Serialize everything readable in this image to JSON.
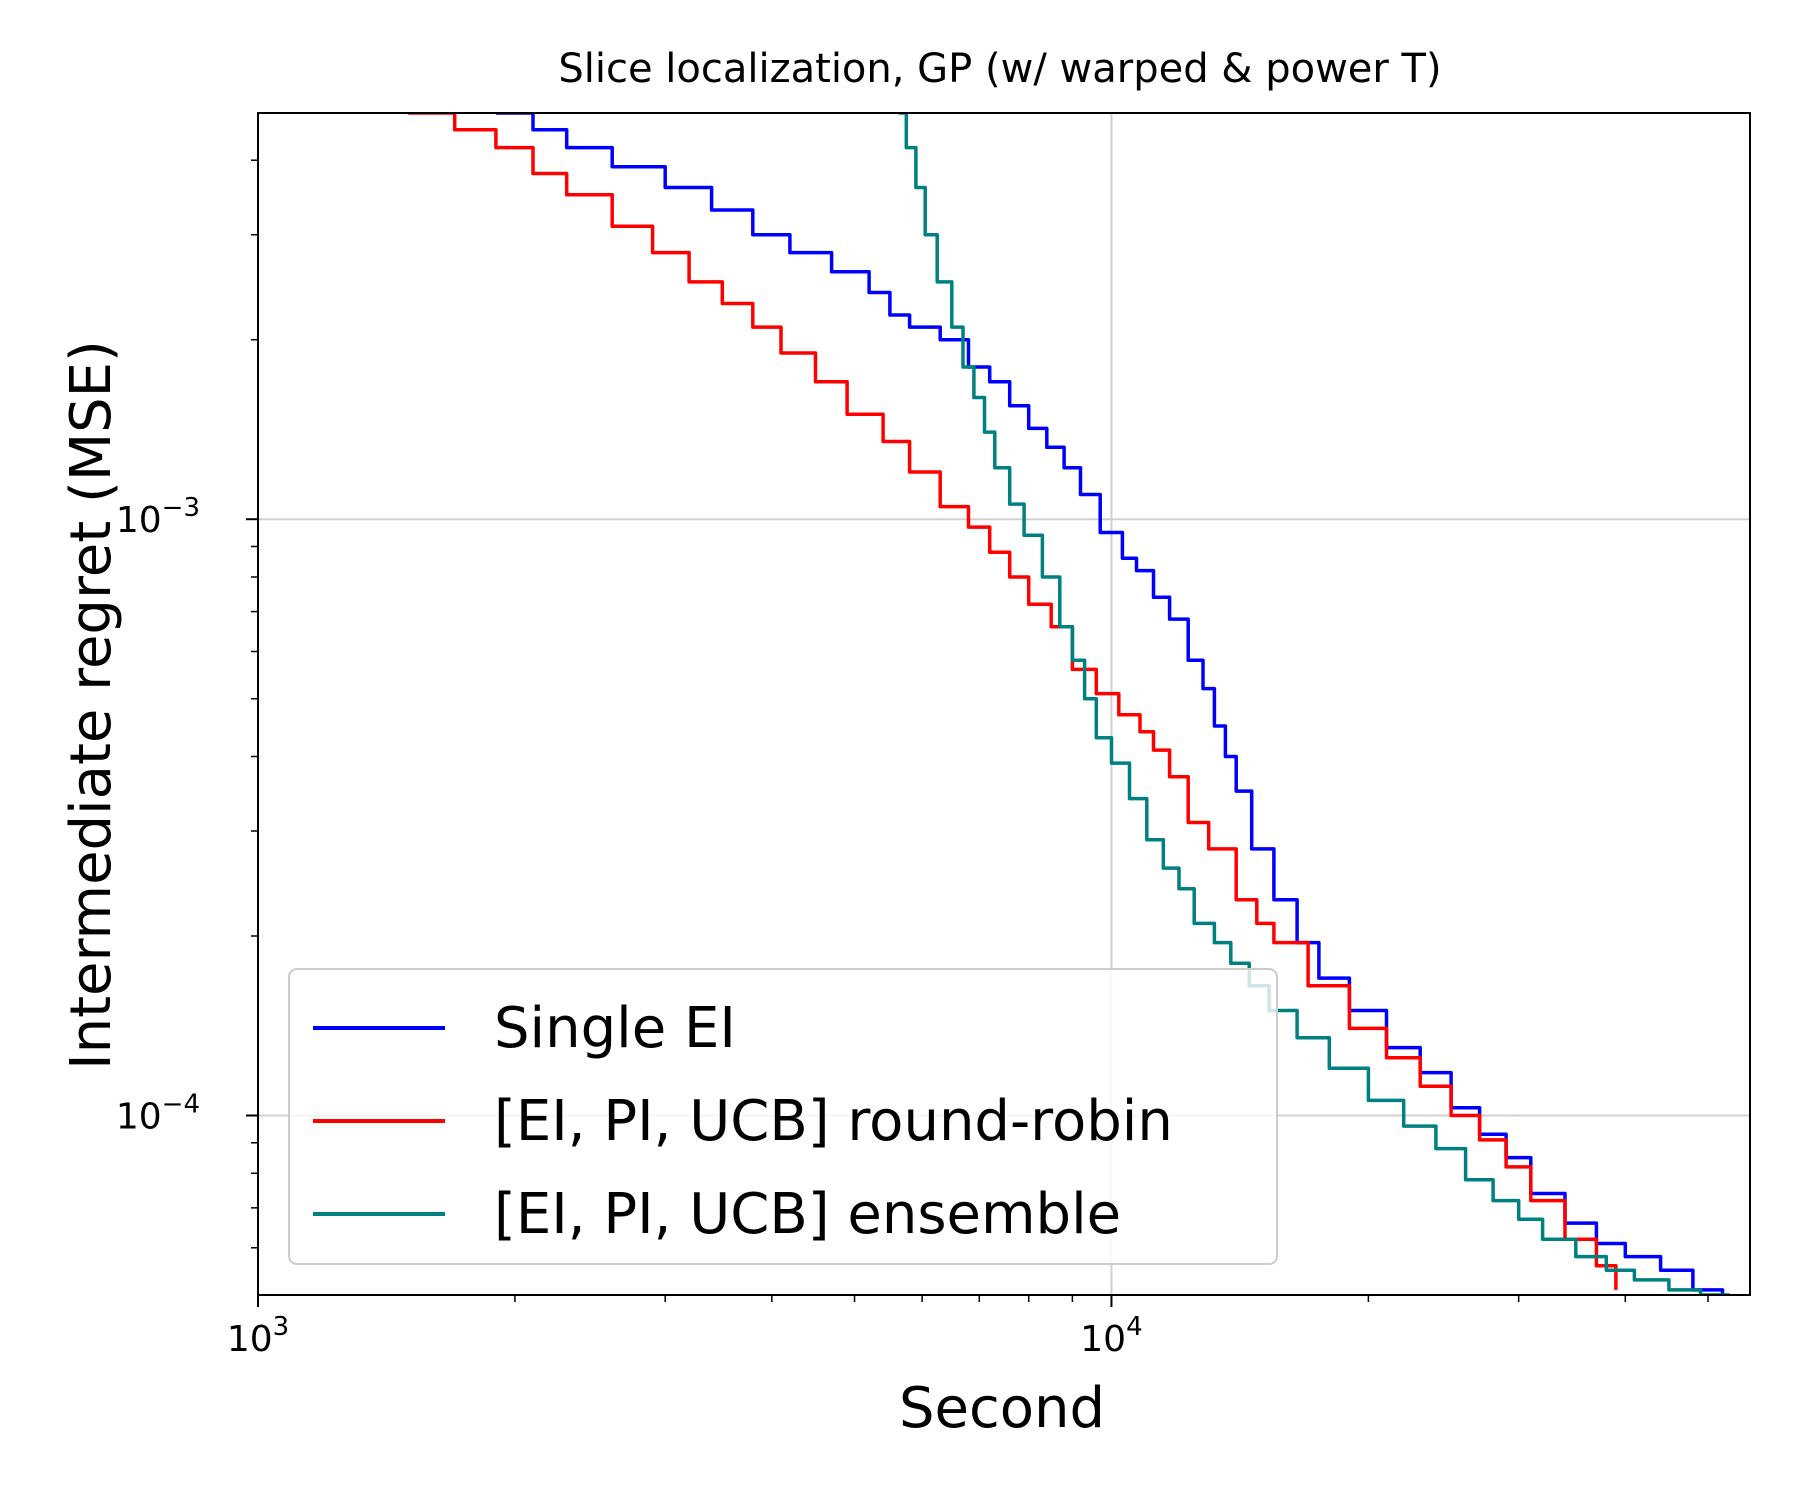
{
  "chart_data": {
    "type": "line",
    "title": "Slice localization, GP (w/ warped & power T)",
    "xlabel": "Second",
    "ylabel": "Intermediate regret (MSE)",
    "xscale": "log",
    "yscale": "log",
    "xlim": [
      1000,
      56000
    ],
    "ylim": [
      5e-05,
      0.0048
    ],
    "grid": true,
    "legend_position": "lower-left",
    "x_ticks": [
      {
        "value": 1000,
        "base": "10",
        "exp": "3"
      },
      {
        "value": 10000,
        "base": "10",
        "exp": "4"
      }
    ],
    "y_ticks": [
      {
        "value": 0.001,
        "base": "10",
        "exp": "−3"
      },
      {
        "value": 0.0001,
        "base": "10",
        "exp": "−4"
      }
    ],
    "series": [
      {
        "name": "Single EI",
        "color": "#0000ff",
        "x": [
          1900,
          2100,
          2300,
          2600,
          3000,
          3400,
          3800,
          4200,
          4700,
          5200,
          5500,
          5800,
          6300,
          6800,
          7200,
          7600,
          8000,
          8400,
          8800,
          9200,
          9700,
          10300,
          10700,
          11200,
          11700,
          12300,
          12800,
          13200,
          13600,
          14000,
          14600,
          15500,
          16500,
          17500,
          19000,
          21000,
          23000,
          25000,
          27000,
          29000,
          31000,
          34000,
          37000,
          40000,
          44000,
          48000,
          52000
        ],
        "y": [
          0.0048,
          0.0045,
          0.0042,
          0.0039,
          0.0036,
          0.0033,
          0.003,
          0.0028,
          0.0026,
          0.0024,
          0.0022,
          0.0021,
          0.002,
          0.0018,
          0.0017,
          0.00155,
          0.00142,
          0.00132,
          0.00122,
          0.0011,
          0.00095,
          0.00086,
          0.00082,
          0.00074,
          0.00068,
          0.00058,
          0.00052,
          0.00045,
          0.0004,
          0.00035,
          0.00028,
          0.00023,
          0.000195,
          0.00017,
          0.00015,
          0.00013,
          0.000118,
          0.000103,
          9.3e-05,
          8.5e-05,
          7.4e-05,
          6.6e-05,
          6.1e-05,
          5.8e-05,
          5.5e-05,
          5.1e-05,
          5e-05
        ]
      },
      {
        "name": "[EI, PI, UCB] round-robin",
        "color": "#ff0000",
        "x": [
          1500,
          1700,
          1900,
          2100,
          2300,
          2600,
          2900,
          3200,
          3500,
          3800,
          4100,
          4500,
          4900,
          5400,
          5800,
          6300,
          6800,
          7200,
          7600,
          8000,
          8500,
          9000,
          9600,
          10200,
          10800,
          11200,
          11700,
          12300,
          13000,
          14000,
          14800,
          15500,
          17000,
          19000,
          21000,
          23000,
          25000,
          27000,
          29000,
          31000,
          34000,
          37000,
          39000
        ],
        "y": [
          0.0048,
          0.0045,
          0.0042,
          0.0038,
          0.0035,
          0.0031,
          0.0028,
          0.0025,
          0.0023,
          0.0021,
          0.0019,
          0.0017,
          0.0015,
          0.00135,
          0.0012,
          0.00105,
          0.00097,
          0.00088,
          0.0008,
          0.00072,
          0.00066,
          0.00056,
          0.00051,
          0.00047,
          0.00044,
          0.00041,
          0.00037,
          0.00031,
          0.00028,
          0.00023,
          0.00021,
          0.000195,
          0.000165,
          0.00014,
          0.000125,
          0.000112,
          0.0001,
          9.1e-05,
          8.2e-05,
          7.2e-05,
          6.2e-05,
          5.6e-05,
          5.1e-05
        ]
      },
      {
        "name": "[EI, PI, UCB] ensemble",
        "color": "#008080",
        "x": [
          5630,
          5750,
          5900,
          6050,
          6250,
          6500,
          6700,
          6900,
          7100,
          7300,
          7600,
          7900,
          8300,
          8700,
          9000,
          9300,
          9600,
          10000,
          10500,
          11000,
          11500,
          12000,
          12500,
          13200,
          13800,
          14500,
          15300,
          16500,
          18000,
          20000,
          22000,
          24000,
          26000,
          28000,
          30000,
          32000,
          35000,
          38000,
          41000,
          45000,
          49000,
          53000
        ],
        "y": [
          0.0048,
          0.0042,
          0.0036,
          0.003,
          0.0025,
          0.0021,
          0.0018,
          0.0016,
          0.0014,
          0.00122,
          0.00106,
          0.00094,
          0.0008,
          0.00066,
          0.00058,
          0.0005,
          0.00043,
          0.00039,
          0.00034,
          0.00029,
          0.00026,
          0.00024,
          0.00021,
          0.000195,
          0.00018,
          0.000165,
          0.00015,
          0.000135,
          0.00012,
          0.000106,
          9.6e-05,
          8.8e-05,
          7.8e-05,
          7.2e-05,
          6.7e-05,
          6.2e-05,
          5.8e-05,
          5.5e-05,
          5.3e-05,
          5.1e-05,
          5e-05,
          5e-05
        ]
      }
    ]
  }
}
